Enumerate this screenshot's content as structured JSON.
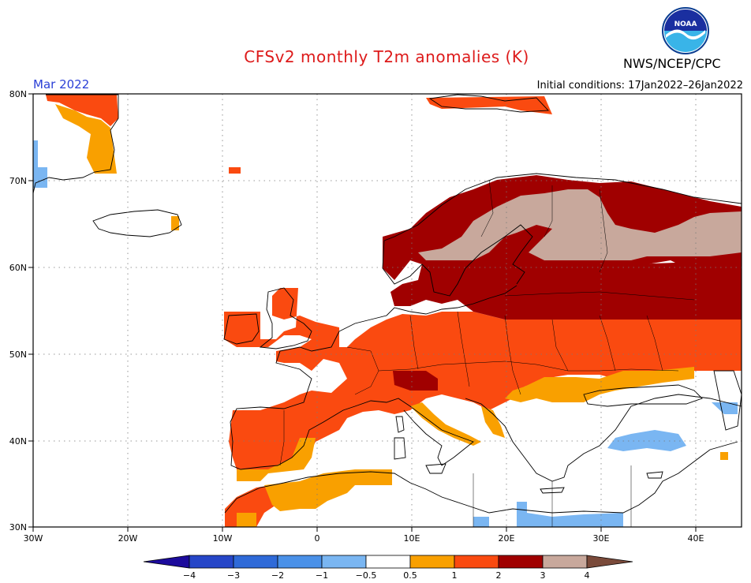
{
  "header": {
    "title": "CFSv2 monthly T2m anomalies (K)",
    "agency": "NWS/NCEP/CPC",
    "logo_text": "NOAA",
    "month": "Mar 2022",
    "initial_conditions": "Initial conditions: 17Jan2022–26Jan2022"
  },
  "map": {
    "lon_range": [
      -30,
      45
    ],
    "lat_range": [
      30,
      80
    ],
    "x_ticks": [
      "30W",
      "20W",
      "10W",
      "0",
      "10E",
      "20E",
      "30E",
      "40E"
    ],
    "y_ticks": [
      "30N",
      "40N",
      "50N",
      "60N",
      "70N",
      "80N"
    ],
    "grid": "dotted"
  },
  "legend": {
    "ticks": [
      "−4",
      "−3",
      "−2",
      "−1",
      "−0.5",
      "0.5",
      "1",
      "2",
      "3",
      "4"
    ],
    "colors": [
      "#1c0b9c",
      "#2646c8",
      "#2f6ad8",
      "#4a91e8",
      "#7ab6f2",
      "#ffffff",
      "#f9a000",
      "#fa4a10",
      "#a00000",
      "#c8a89c",
      "#7a4a3a"
    ]
  },
  "colors": {
    "class_0.5_1": "#f9a000",
    "class_1_2": "#fa4a10",
    "class_2_3": "#a00000",
    "class_3_4": "#c8a89c",
    "class_neg1_neg0.5": "#7ab6f2"
  }
}
